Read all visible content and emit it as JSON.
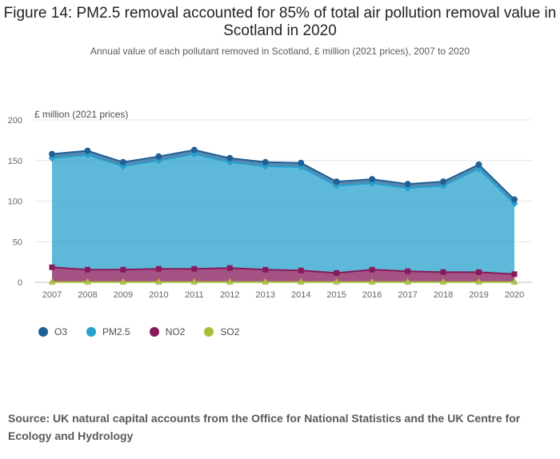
{
  "title": "Figure 14: PM2.5 removal accounted for 85% of total air pollution removal value in Scotland in 2020",
  "subtitle": "Annual value of each pollutant removed in Scotland, £ million (2021 prices), 2007 to 2020",
  "source": "Source: UK natural capital accounts from the Office for National Statistics and the UK Centre for Ecology and Hydrology",
  "chart_data": {
    "type": "area",
    "stacked": true,
    "title": "Figure 14: PM2.5 removal accounted for 85% of total air pollution removal value in Scotland in 2020",
    "ylabel": "£ million (2021 prices)",
    "xlabel": "",
    "ylim": [
      0,
      200
    ],
    "yticks": [
      0,
      50,
      100,
      150,
      200
    ],
    "grid": true,
    "legend_position": "bottom-left",
    "categories": [
      "2007",
      "2008",
      "2009",
      "2010",
      "2011",
      "2012",
      "2013",
      "2014",
      "2015",
      "2016",
      "2017",
      "2018",
      "2019",
      "2020"
    ],
    "series": [
      {
        "name": "SO2",
        "color": "#a8bd3a",
        "marker": "triangle",
        "values": [
          0.2,
          0.2,
          0.2,
          0.2,
          0.2,
          0.2,
          0.2,
          0.2,
          0.2,
          0.2,
          0.2,
          0.2,
          0.2,
          0.2
        ]
      },
      {
        "name": "NO2",
        "color": "#871a5b",
        "marker": "square",
        "values": [
          18.3,
          15.3,
          15.3,
          16.3,
          16.3,
          17.3,
          15.3,
          14.3,
          11.3,
          15.3,
          13.3,
          12.3,
          12.3,
          9.8
        ]
      },
      {
        "name": "PM2.5",
        "color": "#27a0cc",
        "marker": "diamond",
        "values": [
          134.5,
          141.5,
          127.5,
          133.5,
          141.5,
          130.5,
          127.5,
          127.5,
          107.5,
          106.5,
          102.5,
          106.5,
          127.5,
          87.0
        ]
      },
      {
        "name": "O3",
        "color": "#206095",
        "marker": "circle",
        "values": [
          5,
          5,
          5,
          5,
          5,
          5,
          5,
          5,
          5,
          5,
          5,
          5,
          5,
          5
        ]
      }
    ],
    "legend_order": [
      "O3",
      "PM2.5",
      "NO2",
      "SO2"
    ]
  }
}
